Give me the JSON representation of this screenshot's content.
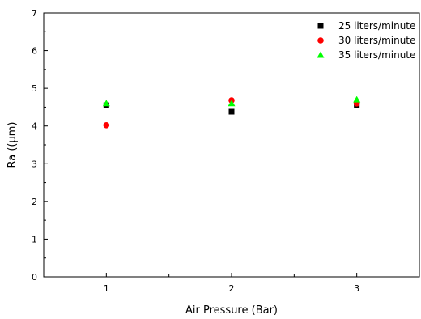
{
  "chart_data": {
    "type": "scatter",
    "title": "",
    "xlabel": "Air Pressure (Bar)",
    "ylabel": "Ra ((µm)",
    "xlim": [
      0.5,
      3.5
    ],
    "ylim": [
      0,
      7
    ],
    "xticks": [
      1,
      2,
      3
    ],
    "yticks": [
      0,
      1,
      2,
      3,
      4,
      5,
      6,
      7
    ],
    "grid": false,
    "legend_position": "top-right",
    "series": [
      {
        "name": "25 liters/minute",
        "marker": "square",
        "color": "#000000",
        "x": [
          1,
          2,
          3
        ],
        "y": [
          4.55,
          4.38,
          4.55
        ]
      },
      {
        "name": "30 liters/minute",
        "marker": "circle",
        "color": "#ff0000",
        "x": [
          1,
          2,
          3
        ],
        "y": [
          4.02,
          4.68,
          4.6
        ]
      },
      {
        "name": "35 liters/minute",
        "marker": "triangle",
        "color": "#00ff00",
        "x": [
          1,
          2,
          3
        ],
        "y": [
          4.6,
          4.6,
          4.7
        ]
      }
    ]
  }
}
